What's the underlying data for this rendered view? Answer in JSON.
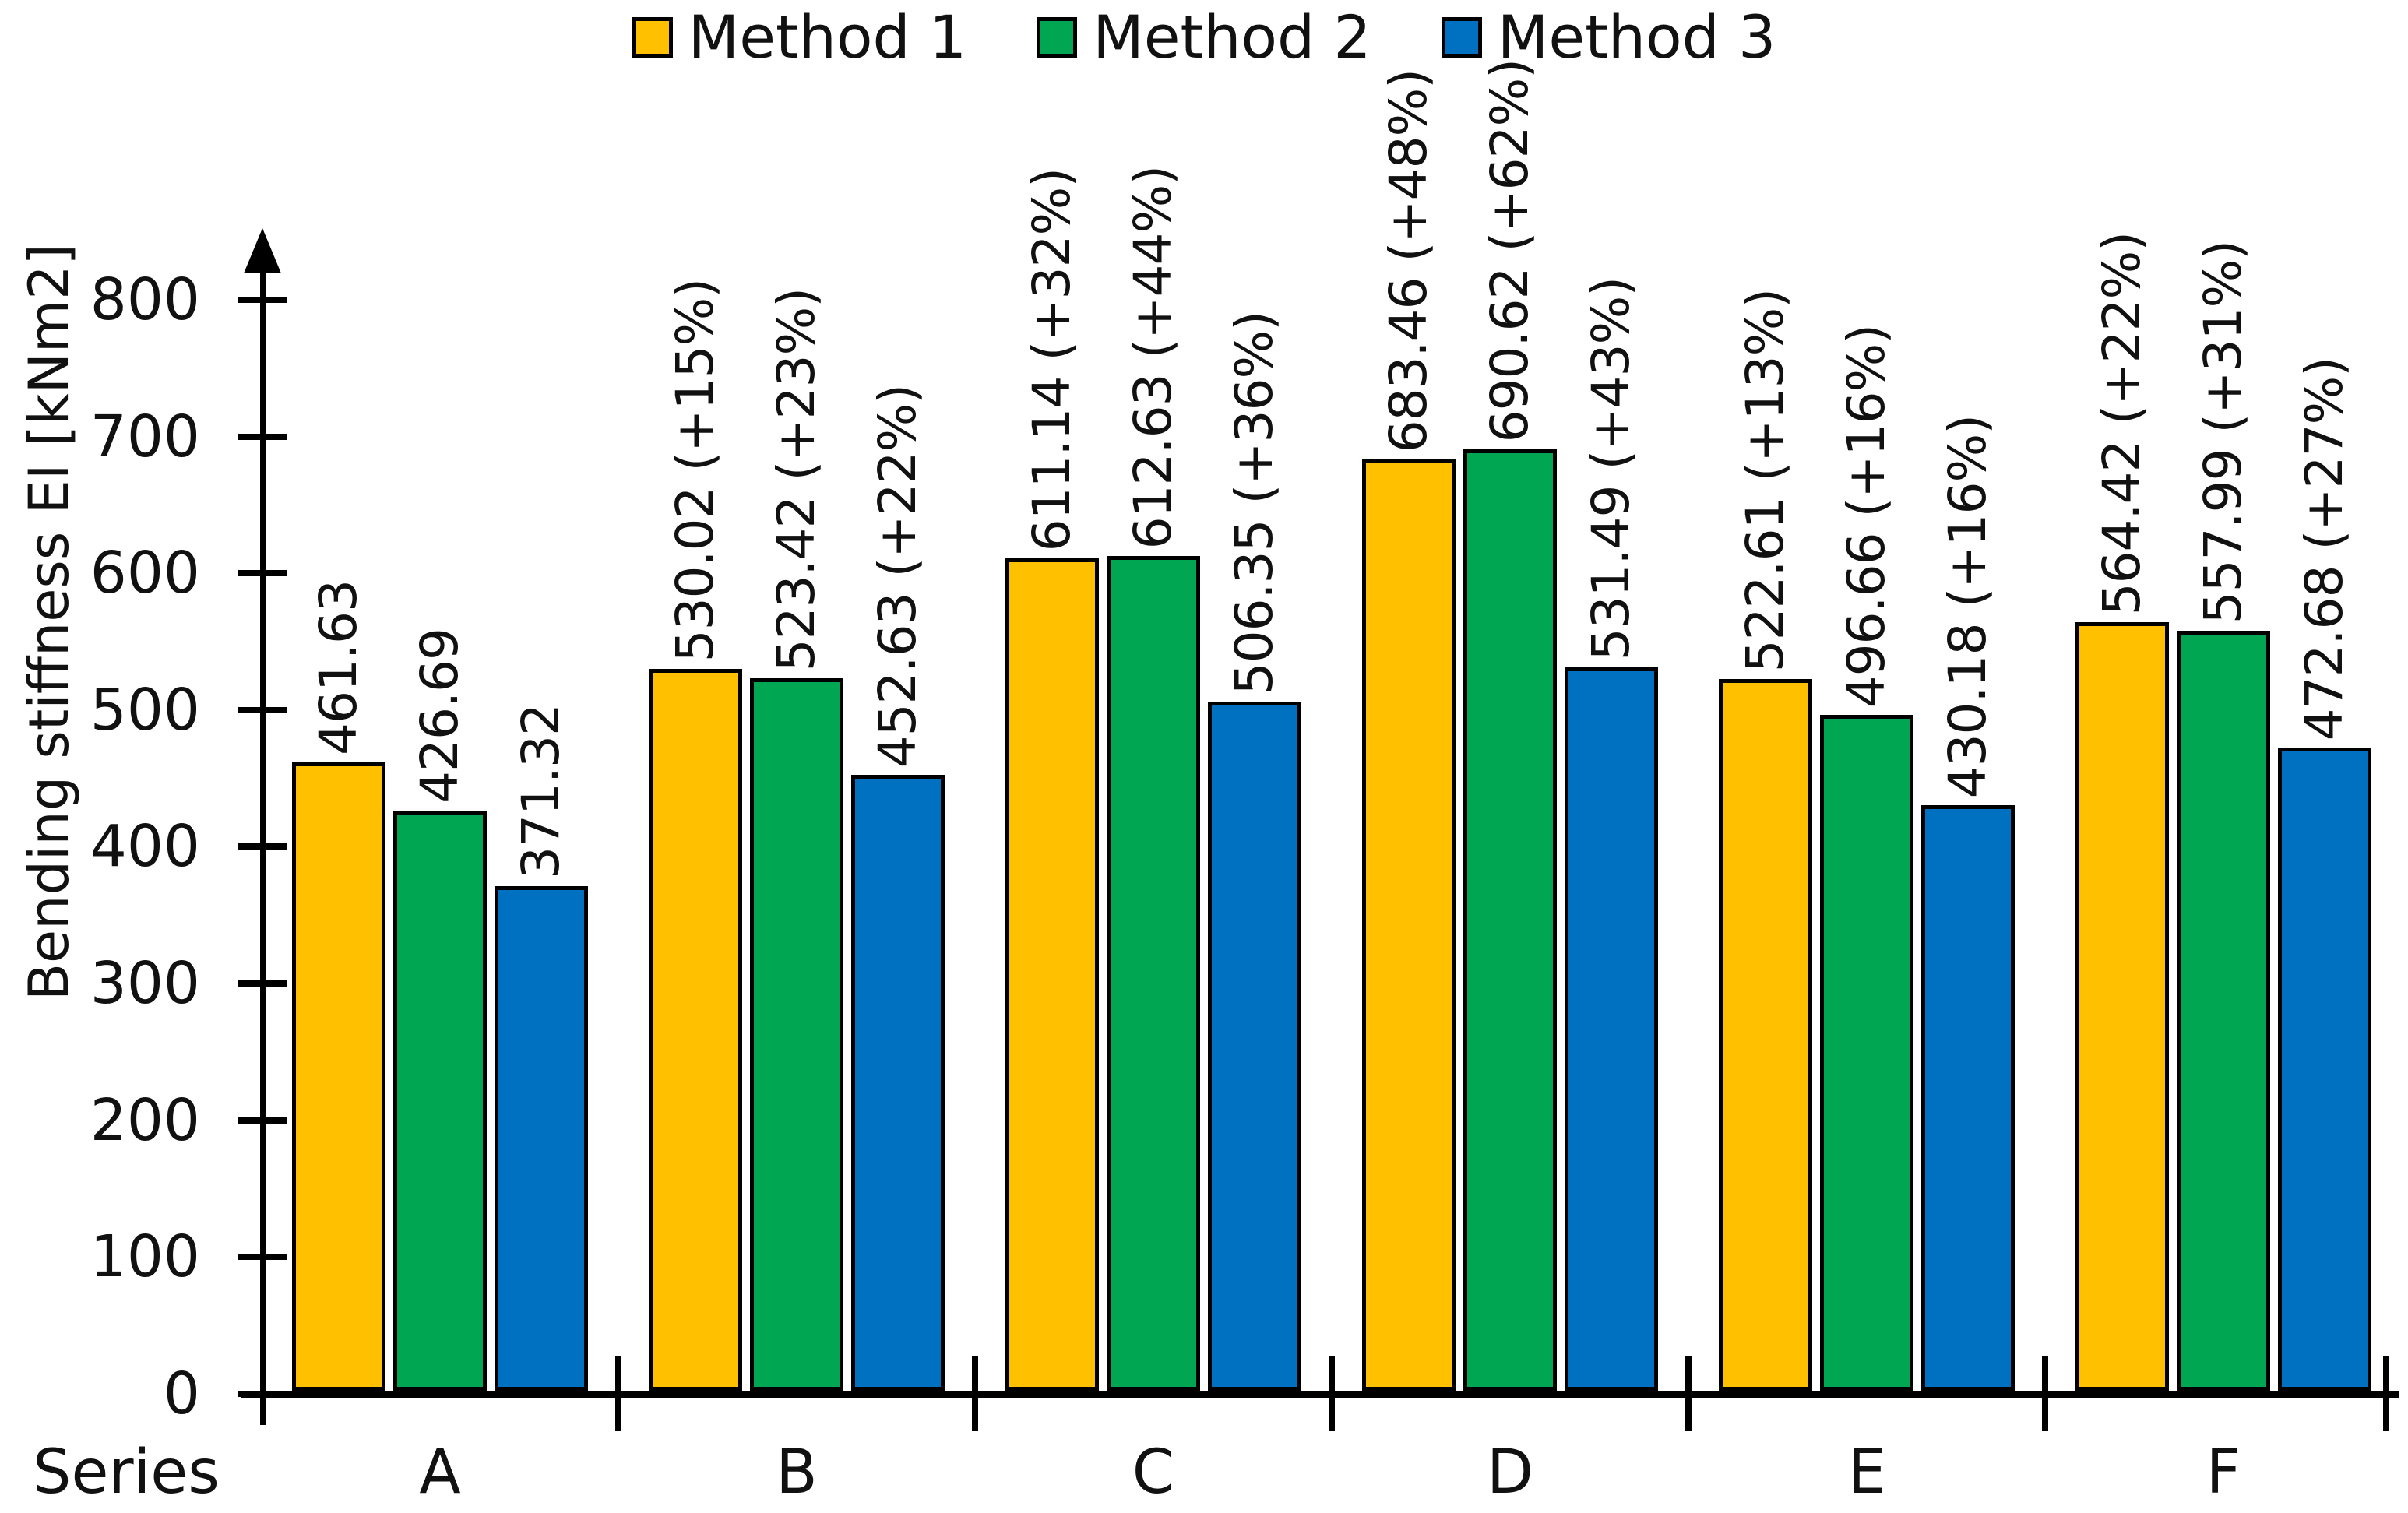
{
  "legend": {
    "items": [
      {
        "label": "Method 1",
        "color": "#FFC000"
      },
      {
        "label": "Method 2",
        "color": "#00A651"
      },
      {
        "label": "Method 3",
        "color": "#0070C0"
      }
    ]
  },
  "axes": {
    "y_title": "Bending stiffness EI [kNm2]",
    "x_prefix": "Series",
    "y_ticks": [
      "0",
      "100",
      "200",
      "300",
      "400",
      "500",
      "600",
      "700",
      "800"
    ]
  },
  "chart_data": {
    "type": "bar",
    "title": "",
    "ylabel": "Bending stiffness EI [kNm2]",
    "xlabel": "Series",
    "ylim": [
      0,
      800
    ],
    "ytick_step": 100,
    "grid": false,
    "legend_position": "top-center",
    "categories": [
      "A",
      "B",
      "C",
      "D",
      "E",
      "F"
    ],
    "series": [
      {
        "name": "Method 1",
        "color": "#FFC000",
        "values": [
          461.63,
          530.02,
          611.14,
          683.46,
          522.61,
          564.42
        ],
        "bar_labels": [
          "461.63",
          "530.02 (+15%)",
          "611.14 (+32%)",
          "683.46 (+48%)",
          "522.61 (+13%)",
          "564.42 (+22%)"
        ]
      },
      {
        "name": "Method 2",
        "color": "#00A651",
        "values": [
          426.69,
          523.42,
          612.63,
          690.62,
          496.66,
          557.99
        ],
        "bar_labels": [
          "426.69",
          "523.42 (+23%)",
          "612.63 (+44%)",
          "690.62 (+62%)",
          "496.66 (+16%)",
          "557.99 (+31%)"
        ]
      },
      {
        "name": "Method 3",
        "color": "#0070C0",
        "values": [
          371.32,
          452.63,
          506.35,
          531.49,
          430.18,
          472.68
        ],
        "bar_labels": [
          "371.32",
          "452.63 (+22%)",
          "506.35 (+36%)",
          "531.49 (+43%)",
          "430.18 (+16%)",
          "472.68 (+27%)"
        ]
      }
    ]
  }
}
